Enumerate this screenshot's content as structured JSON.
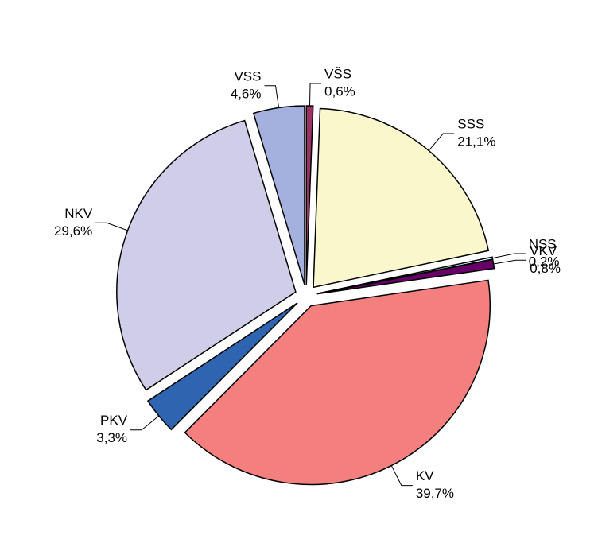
{
  "chart_data": {
    "type": "pie",
    "categories": [
      "VŠS",
      "SSS",
      "NSS",
      "VKV",
      "KV",
      "PKV",
      "NKV",
      "VSS"
    ],
    "values": [
      0.6,
      21.1,
      0.2,
      0.8,
      39.7,
      3.3,
      29.6,
      4.6
    ],
    "value_labels": [
      "0,6%",
      "21,1%",
      "0,2%",
      "0,8%",
      "39,7%",
      "3,3%",
      "29,6%",
      "4,6%"
    ],
    "colors": [
      "#993366",
      "#fbf7cc",
      "#ccffff",
      "#660066",
      "#f47f7f",
      "#2e64b0",
      "#cfcde8",
      "#a4b0de"
    ]
  }
}
